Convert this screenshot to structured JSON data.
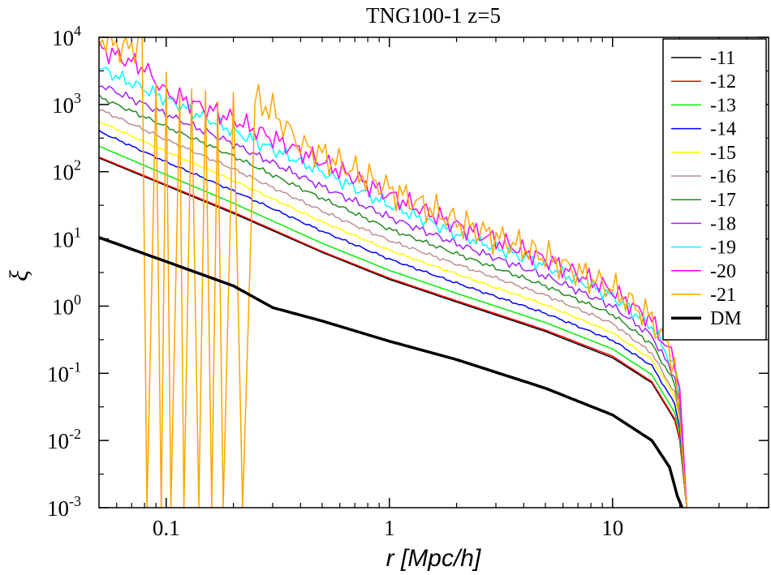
{
  "chart_data": {
    "type": "line",
    "title": "TNG100-1 z=5",
    "xlabel": "r [Mpc/h]",
    "ylabel": "ξ",
    "xscale": "log",
    "yscale": "log",
    "xlim": [
      0.05,
      50
    ],
    "ylim": [
      0.001,
      10000
    ],
    "x_ticks": [
      {
        "value": 0.1,
        "label": "0.1"
      },
      {
        "value": 1,
        "label": "1"
      },
      {
        "value": 10,
        "label": "10"
      }
    ],
    "y_ticks": [
      {
        "value": 0.001,
        "base": "10",
        "exp": "-3"
      },
      {
        "value": 0.01,
        "base": "10",
        "exp": "-2"
      },
      {
        "value": 0.1,
        "base": "10",
        "exp": "-1"
      },
      {
        "value": 1,
        "base": "10",
        "exp": "0"
      },
      {
        "value": 10,
        "base": "10",
        "exp": "1"
      },
      {
        "value": 100,
        "base": "10",
        "exp": "2"
      },
      {
        "value": 1000,
        "base": "10",
        "exp": "3"
      },
      {
        "value": 10000,
        "base": "10",
        "exp": "4"
      }
    ],
    "legend_position": "top-right",
    "series": [
      {
        "name": "-11",
        "color": "#000000",
        "width": 1.5,
        "noise": 0,
        "points": [
          [
            0.05,
            160
          ],
          [
            0.1,
            62
          ],
          [
            0.2,
            24
          ],
          [
            0.5,
            6.3
          ],
          [
            1,
            2.5
          ],
          [
            2,
            1.15
          ],
          [
            5,
            0.42
          ],
          [
            10,
            0.17
          ],
          [
            15,
            0.072
          ],
          [
            19,
            0.02
          ],
          [
            20,
            0.01
          ],
          [
            21.5,
            0.001
          ]
        ]
      },
      {
        "name": "-12",
        "color": "#ff0000",
        "width": 1.5,
        "noise": 0,
        "points": [
          [
            0.05,
            165
          ],
          [
            0.1,
            64
          ],
          [
            0.2,
            25
          ],
          [
            0.5,
            6.5
          ],
          [
            1,
            2.6
          ],
          [
            2,
            1.2
          ],
          [
            5,
            0.44
          ],
          [
            10,
            0.18
          ],
          [
            15,
            0.075
          ],
          [
            19,
            0.021
          ],
          [
            20,
            0.01
          ],
          [
            21.5,
            0.001
          ]
        ]
      },
      {
        "name": "-13",
        "color": "#00ee00",
        "width": 1.5,
        "noise": 0,
        "points": [
          [
            0.05,
            240
          ],
          [
            0.1,
            90
          ],
          [
            0.2,
            34
          ],
          [
            0.5,
            8.6
          ],
          [
            1,
            3.4
          ],
          [
            2,
            1.55
          ],
          [
            5,
            0.57
          ],
          [
            10,
            0.23
          ],
          [
            15,
            0.095
          ],
          [
            19,
            0.026
          ],
          [
            20,
            0.012
          ],
          [
            21.5,
            0.001
          ]
        ]
      },
      {
        "name": "-14",
        "color": "#0000ff",
        "width": 1.5,
        "noise": 0.02,
        "points": [
          [
            0.05,
            400
          ],
          [
            0.1,
            140
          ],
          [
            0.2,
            52
          ],
          [
            0.5,
            13
          ],
          [
            1,
            5
          ],
          [
            2,
            2.2
          ],
          [
            5,
            0.78
          ],
          [
            10,
            0.31
          ],
          [
            15,
            0.13
          ],
          [
            19,
            0.035
          ],
          [
            20,
            0.015
          ],
          [
            21.5,
            0.001
          ]
        ]
      },
      {
        "name": "-15",
        "color": "#ffff00",
        "width": 1.5,
        "noise": 0.02,
        "points": [
          [
            0.05,
            560
          ],
          [
            0.1,
            200
          ],
          [
            0.2,
            74
          ],
          [
            0.5,
            18
          ],
          [
            1,
            6.8
          ],
          [
            2,
            3
          ],
          [
            5,
            1.05
          ],
          [
            10,
            0.4
          ],
          [
            15,
            0.16
          ],
          [
            19,
            0.045
          ],
          [
            20,
            0.02
          ],
          [
            21.5,
            0.001
          ]
        ]
      },
      {
        "name": "-16",
        "color": "#bc8f8f",
        "width": 1.5,
        "noise": 0.03,
        "points": [
          [
            0.05,
            850
          ],
          [
            0.1,
            300
          ],
          [
            0.2,
            110
          ],
          [
            0.5,
            26
          ],
          [
            1,
            9.5
          ],
          [
            2,
            4.2
          ],
          [
            5,
            1.45
          ],
          [
            10,
            0.55
          ],
          [
            15,
            0.2
          ],
          [
            19,
            0.05
          ],
          [
            20,
            0.022
          ],
          [
            21.5,
            0.001
          ]
        ]
      },
      {
        "name": "-17",
        "color": "#228b22",
        "width": 1.5,
        "noise": 0.04,
        "points": [
          [
            0.05,
            1300
          ],
          [
            0.1,
            470
          ],
          [
            0.2,
            170
          ],
          [
            0.5,
            40
          ],
          [
            1,
            14
          ],
          [
            2,
            6
          ],
          [
            5,
            2
          ],
          [
            10,
            0.75
          ],
          [
            15,
            0.27
          ],
          [
            19,
            0.07
          ],
          [
            20,
            0.03
          ],
          [
            21.5,
            0.001
          ]
        ]
      },
      {
        "name": "-18",
        "color": "#a020f0",
        "width": 1.5,
        "noise": 0.07,
        "points": [
          [
            0.05,
            2000
          ],
          [
            0.1,
            720
          ],
          [
            0.2,
            260
          ],
          [
            0.5,
            60
          ],
          [
            1,
            21
          ],
          [
            2,
            8.5
          ],
          [
            5,
            2.8
          ],
          [
            10,
            1
          ],
          [
            15,
            0.36
          ],
          [
            19,
            0.09
          ],
          [
            20,
            0.04
          ],
          [
            21.5,
            0.001
          ]
        ]
      },
      {
        "name": "-19",
        "color": "#00ffff",
        "width": 1.5,
        "noise": 0.12,
        "points": [
          [
            0.05,
            3500
          ],
          [
            0.1,
            1200
          ],
          [
            0.2,
            400
          ],
          [
            0.5,
            100
          ],
          [
            1,
            32
          ],
          [
            2,
            12
          ],
          [
            5,
            4
          ],
          [
            10,
            1.4
          ],
          [
            15,
            0.5
          ],
          [
            19,
            0.12
          ],
          [
            20,
            0.05
          ],
          [
            21.5,
            0.001
          ]
        ]
      },
      {
        "name": "-20",
        "color": "#ff00ff",
        "width": 1.5,
        "noise": 0.18,
        "points": [
          [
            0.05,
            7000
          ],
          [
            0.08,
            3500
          ],
          [
            0.1,
            1500
          ],
          [
            0.2,
            600
          ],
          [
            0.5,
            140
          ],
          [
            1,
            45
          ],
          [
            2,
            16
          ],
          [
            5,
            5
          ],
          [
            10,
            1.7
          ],
          [
            15,
            0.6
          ],
          [
            19,
            0.15
          ],
          [
            20,
            0.06
          ],
          [
            21.5,
            0.001
          ]
        ]
      },
      {
        "name": "-21",
        "color": "#ffa500",
        "width": 1.5,
        "noise": 0.28,
        "points": [
          [
            0.05,
            10000
          ],
          [
            0.062,
            7500
          ],
          [
            0.07,
            6500
          ],
          [
            0.075,
            9000
          ],
          [
            0.078,
            10000
          ],
          [
            0.082,
            0.001
          ],
          [
            0.09,
            2000
          ],
          [
            0.095,
            0.001
          ],
          [
            0.1,
            3000
          ],
          [
            0.105,
            0.001
          ],
          [
            0.115,
            1400
          ],
          [
            0.12,
            0.001
          ],
          [
            0.13,
            1700
          ],
          [
            0.14,
            0.001
          ],
          [
            0.15,
            1600
          ],
          [
            0.16,
            0.001
          ],
          [
            0.17,
            1100
          ],
          [
            0.18,
            0.001
          ],
          [
            0.2,
            1500
          ],
          [
            0.22,
            0.001
          ],
          [
            0.25,
            1200
          ],
          [
            0.3,
            800
          ],
          [
            0.4,
            250
          ],
          [
            0.5,
            180
          ],
          [
            1,
            55
          ],
          [
            2,
            18
          ],
          [
            5,
            5.5
          ],
          [
            10,
            1.8
          ],
          [
            15,
            0.65
          ],
          [
            19,
            0.15
          ],
          [
            20,
            0.02
          ],
          [
            21.5,
            0.001
          ]
        ]
      },
      {
        "name": "DM",
        "color": "#000000",
        "width": 3.5,
        "noise": 0,
        "points": [
          [
            0.05,
            10.5
          ],
          [
            0.1,
            4.6
          ],
          [
            0.2,
            2
          ],
          [
            0.3,
            0.95
          ],
          [
            0.5,
            0.6
          ],
          [
            1,
            0.3
          ],
          [
            2,
            0.16
          ],
          [
            5,
            0.06
          ],
          [
            10,
            0.024
          ],
          [
            15,
            0.01
          ],
          [
            18,
            0.004
          ],
          [
            19.5,
            0.0015
          ],
          [
            20.5,
            0.001
          ]
        ]
      }
    ]
  }
}
